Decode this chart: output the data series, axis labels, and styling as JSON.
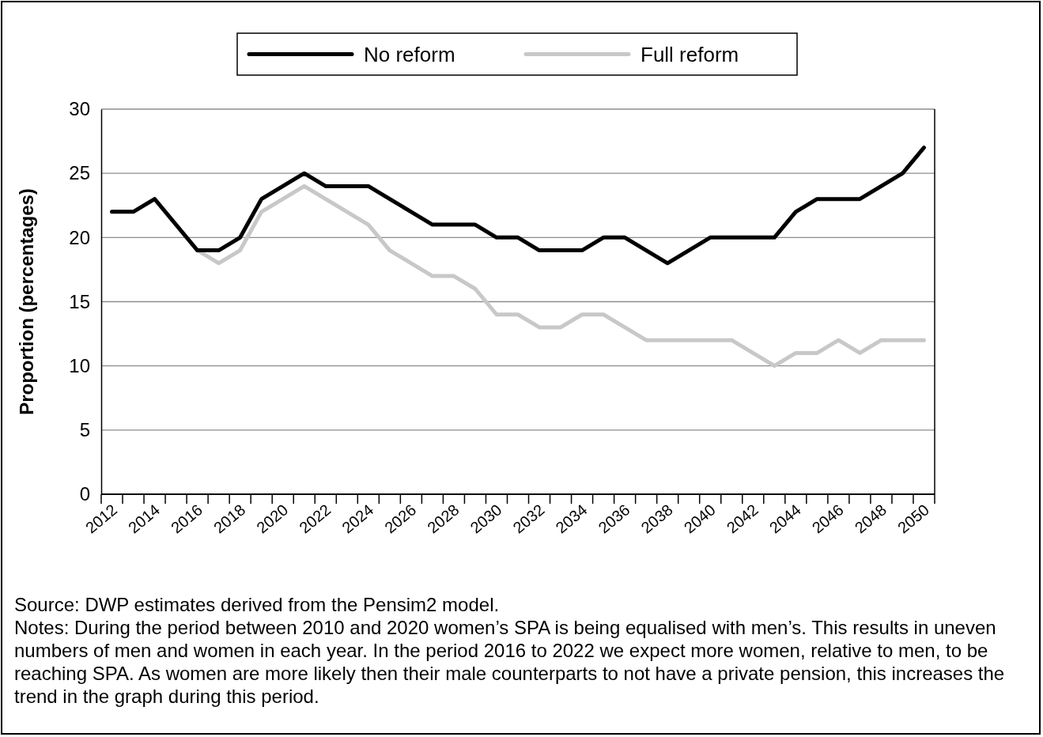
{
  "chart_data": {
    "type": "line",
    "ylabel": "Proportion (percentages)",
    "categories": [
      "2012",
      null,
      "2014",
      null,
      "2016",
      null,
      "2018",
      null,
      "2020",
      null,
      "2022",
      null,
      "2024",
      null,
      "2026",
      null,
      "2028",
      null,
      "2030",
      null,
      "2032",
      null,
      "2034",
      null,
      "2036",
      null,
      "2038",
      null,
      "2040",
      null,
      "2042",
      null,
      "2044",
      null,
      "2046",
      null,
      "2048",
      null,
      "2050"
    ],
    "series": [
      {
        "name": "No reform",
        "color": "#000000",
        "values": [
          22,
          22,
          23,
          21,
          19,
          19,
          20,
          23,
          24,
          25,
          24,
          24,
          24,
          23,
          22,
          21,
          21,
          21,
          20,
          20,
          19,
          19,
          19,
          20,
          20,
          19,
          18,
          19,
          20,
          20,
          20,
          20,
          22,
          23,
          23,
          23,
          24,
          25,
          27
        ]
      },
      {
        "name": "Full reform",
        "color": "#c8c8c8",
        "values": [
          null,
          null,
          null,
          null,
          19,
          18,
          19,
          22,
          23,
          24,
          23,
          22,
          21,
          19,
          18,
          17,
          17,
          16,
          14,
          14,
          13,
          13,
          14,
          14,
          13,
          12,
          12,
          12,
          12,
          12,
          11,
          10,
          11,
          11,
          12,
          11,
          12,
          12,
          12
        ]
      }
    ],
    "ylim": [
      0,
      30
    ],
    "yticks": [
      0,
      5,
      10,
      15,
      20,
      25,
      30
    ],
    "grid": "y",
    "legend": "top",
    "marker": "none",
    "line_style": "solid",
    "annotations": [
      "Source: DWP estimates derived from the Pensim2 model.",
      "Notes: During the period between 2010 and 2020 women’s SPA is being equalised with men’s. This results in uneven numbers of men and women in each year. In the period 2016 to 2022 we expect more women, relative to men, to be reaching SPA. As women are more likely then their male counterparts to not have a private pension, this increases the trend in the graph during this period."
    ]
  }
}
